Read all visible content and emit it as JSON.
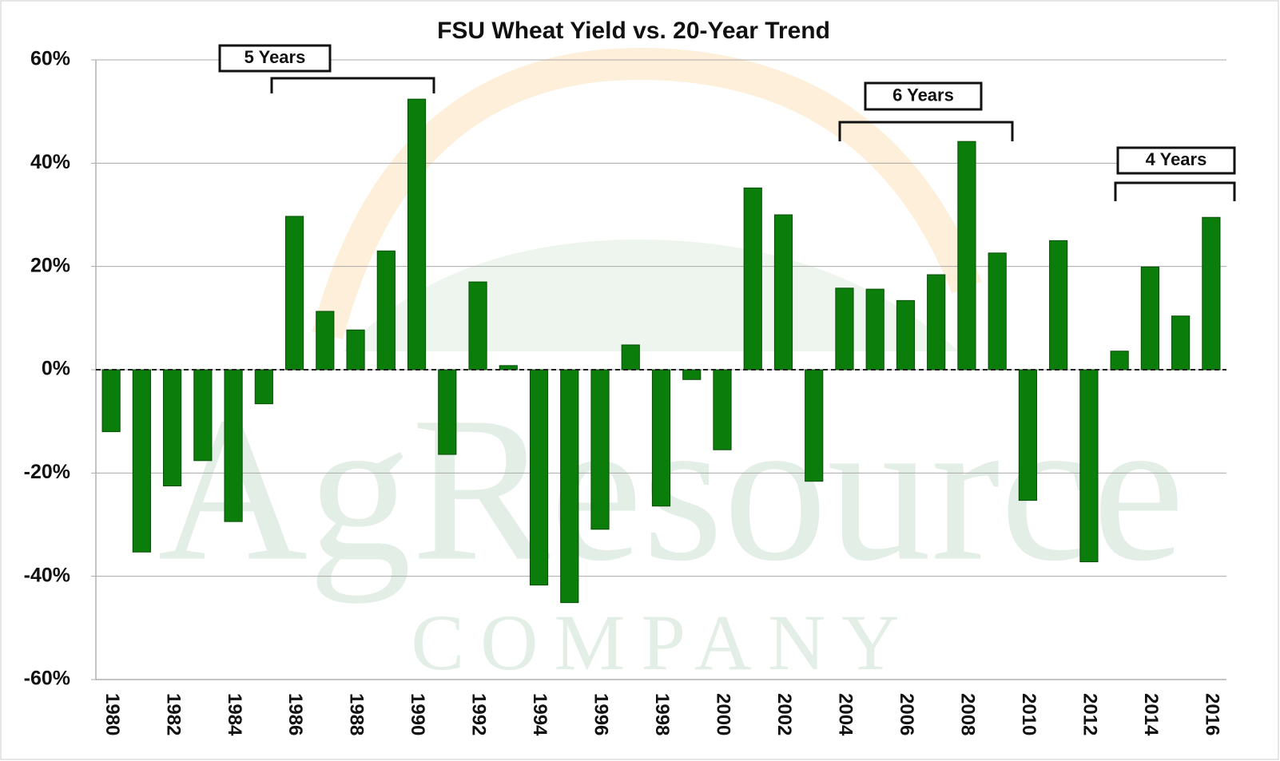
{
  "chart_data": {
    "type": "bar",
    "title": "FSU Wheat Yield vs. 20-Year Trend",
    "categories": [
      "1980",
      null,
      "1982",
      null,
      "1984",
      null,
      "1986",
      null,
      "1988",
      null,
      "1990",
      null,
      "1992",
      null,
      "1994",
      null,
      "1996",
      null,
      "1998",
      null,
      "2000",
      null,
      "2002",
      null,
      "2004",
      null,
      "2006",
      null,
      "2008",
      null,
      "2010",
      null,
      "2012",
      null,
      "2014",
      null,
      "2016"
    ],
    "values": [
      -12,
      -35.3,
      -22.5,
      -17.6,
      -29.4,
      -6.6,
      29.7,
      11.3,
      7.7,
      23,
      52.4,
      -16.4,
      17,
      0.8,
      -41.7,
      -45.1,
      -30.9,
      4.8,
      -26.4,
      -1.9,
      -15.5,
      35.2,
      30,
      -21.6,
      15.8,
      15.6,
      13.4,
      18.4,
      44.2,
      22.6,
      -25.3,
      25,
      -37.2,
      3.6,
      19.9,
      10.4,
      29.5
    ],
    "color": "#0b7d0b",
    "ylim": [
      -60,
      60
    ],
    "yticks": [
      {
        "value": -60,
        "label": "-60%"
      },
      {
        "value": -40,
        "label": "-40%"
      },
      {
        "value": -20,
        "label": "-20%"
      },
      {
        "value": 0,
        "label": "0%"
      },
      {
        "value": 20,
        "label": "20%"
      },
      {
        "value": 40,
        "label": "40%"
      },
      {
        "value": 60,
        "label": "60%"
      }
    ],
    "grid": true,
    "annotations": [
      "5 Years",
      "6 Years",
      "4 Years"
    ],
    "watermark": [
      "AgResource",
      "COMPANY"
    ]
  }
}
